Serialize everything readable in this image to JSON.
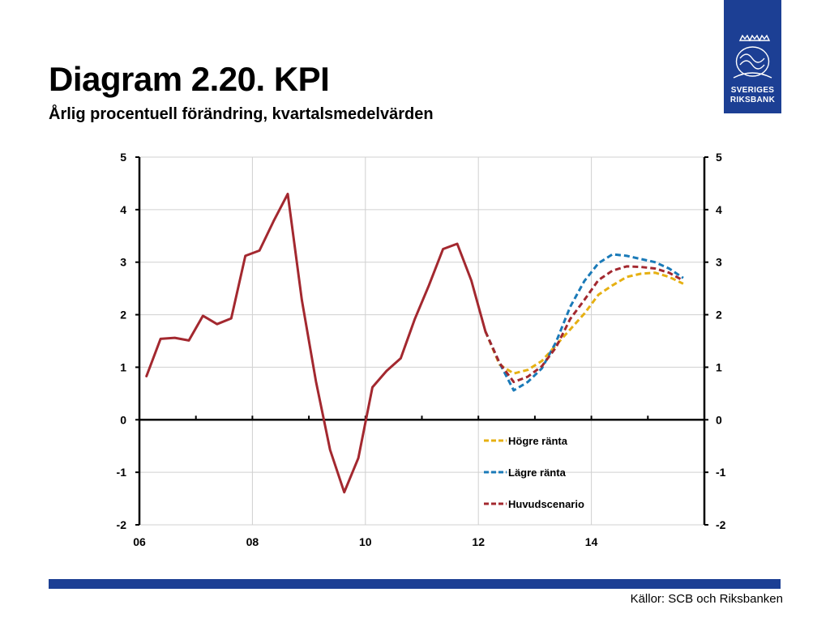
{
  "header": {
    "title": "Diagram 2.20. KPI",
    "subtitle": "Årlig procentuell förändring, kvartalsmedelvärden"
  },
  "logo": {
    "text_line1": "SVERIGES",
    "text_line2": "RIKSBANK",
    "color": "#1c3f94"
  },
  "footer": {
    "source": "Källor: SCB och Riksbanken",
    "bar_color": "#1c3f94"
  },
  "chart_data": {
    "type": "line",
    "title": "Diagram 2.20. KPI",
    "subtitle": "Årlig procentuell förändring, kvartalsmedelvärden",
    "xlabel": "",
    "ylabel": "",
    "xlim": [
      2006,
      2016
    ],
    "ylim": [
      -2,
      5
    ],
    "x_ticks": [
      2006,
      2008,
      2010,
      2012,
      2014
    ],
    "x_tick_labels": [
      "06",
      "08",
      "10",
      "12",
      "14"
    ],
    "y_ticks": [
      -2,
      -1,
      0,
      1,
      2,
      3,
      4,
      5
    ],
    "y_tick_labels": [
      "-2",
      "-1",
      "0",
      "1",
      "2",
      "3",
      "4",
      "5"
    ],
    "grid": true,
    "dual_y_axis": true,
    "legend_position": "bottom-right",
    "series": [
      {
        "name": "Huvudscenario",
        "color": "#a3282f",
        "style": "solid",
        "x": [
          2006.125,
          2006.375,
          2006.625,
          2006.875,
          2007.125,
          2007.375,
          2007.625,
          2007.875,
          2008.125,
          2008.375,
          2008.625,
          2008.875,
          2009.125,
          2009.375,
          2009.625,
          2009.875,
          2010.125,
          2010.375,
          2010.625,
          2010.875,
          2011.125,
          2011.375,
          2011.625,
          2011.875,
          2012.125
        ],
        "values": [
          0.83,
          1.54,
          1.56,
          1.51,
          1.98,
          1.82,
          1.93,
          3.12,
          3.22,
          3.78,
          4.3,
          2.28,
          0.73,
          -0.57,
          -1.38,
          -0.73,
          0.62,
          0.93,
          1.17,
          1.92,
          2.56,
          3.25,
          3.35,
          2.65,
          1.68
        ]
      },
      {
        "name": "Högre ränta",
        "color": "#e6b012",
        "style": "dashed",
        "x": [
          2012.125,
          2012.375,
          2012.625,
          2012.875,
          2013.125,
          2013.375,
          2013.625,
          2013.875,
          2014.125,
          2014.375,
          2014.625,
          2014.875,
          2015.125,
          2015.375,
          2015.625
        ],
        "values": [
          1.68,
          1.05,
          0.88,
          0.95,
          1.12,
          1.42,
          1.72,
          2.02,
          2.38,
          2.56,
          2.72,
          2.78,
          2.8,
          2.72,
          2.59
        ]
      },
      {
        "name": "Lägre ränta",
        "color": "#1a7ab8",
        "style": "dashed",
        "x": [
          2012.125,
          2012.375,
          2012.625,
          2012.875,
          2013.125,
          2013.375,
          2013.625,
          2013.875,
          2014.125,
          2014.375,
          2014.625,
          2014.875,
          2015.125,
          2015.375,
          2015.625
        ],
        "values": [
          1.68,
          1.08,
          0.56,
          0.72,
          0.98,
          1.48,
          2.15,
          2.64,
          2.98,
          3.15,
          3.12,
          3.06,
          3.0,
          2.88,
          2.7
        ]
      },
      {
        "name": "Huvudscenario",
        "color": "#a3282f",
        "style": "dashed",
        "x": [
          2012.125,
          2012.375,
          2012.625,
          2012.875,
          2013.125,
          2013.375,
          2013.625,
          2013.875,
          2014.125,
          2014.375,
          2014.625,
          2014.875,
          2015.125,
          2015.375,
          2015.625
        ],
        "values": [
          1.68,
          1.08,
          0.72,
          0.82,
          1.02,
          1.38,
          1.92,
          2.28,
          2.66,
          2.84,
          2.92,
          2.91,
          2.88,
          2.8,
          2.65
        ]
      }
    ],
    "legend": [
      {
        "label": "Högre ränta",
        "color": "#e6b012"
      },
      {
        "label": "Lägre ränta",
        "color": "#1a7ab8"
      },
      {
        "label": "Huvudscenario",
        "color": "#a3282f"
      }
    ]
  }
}
